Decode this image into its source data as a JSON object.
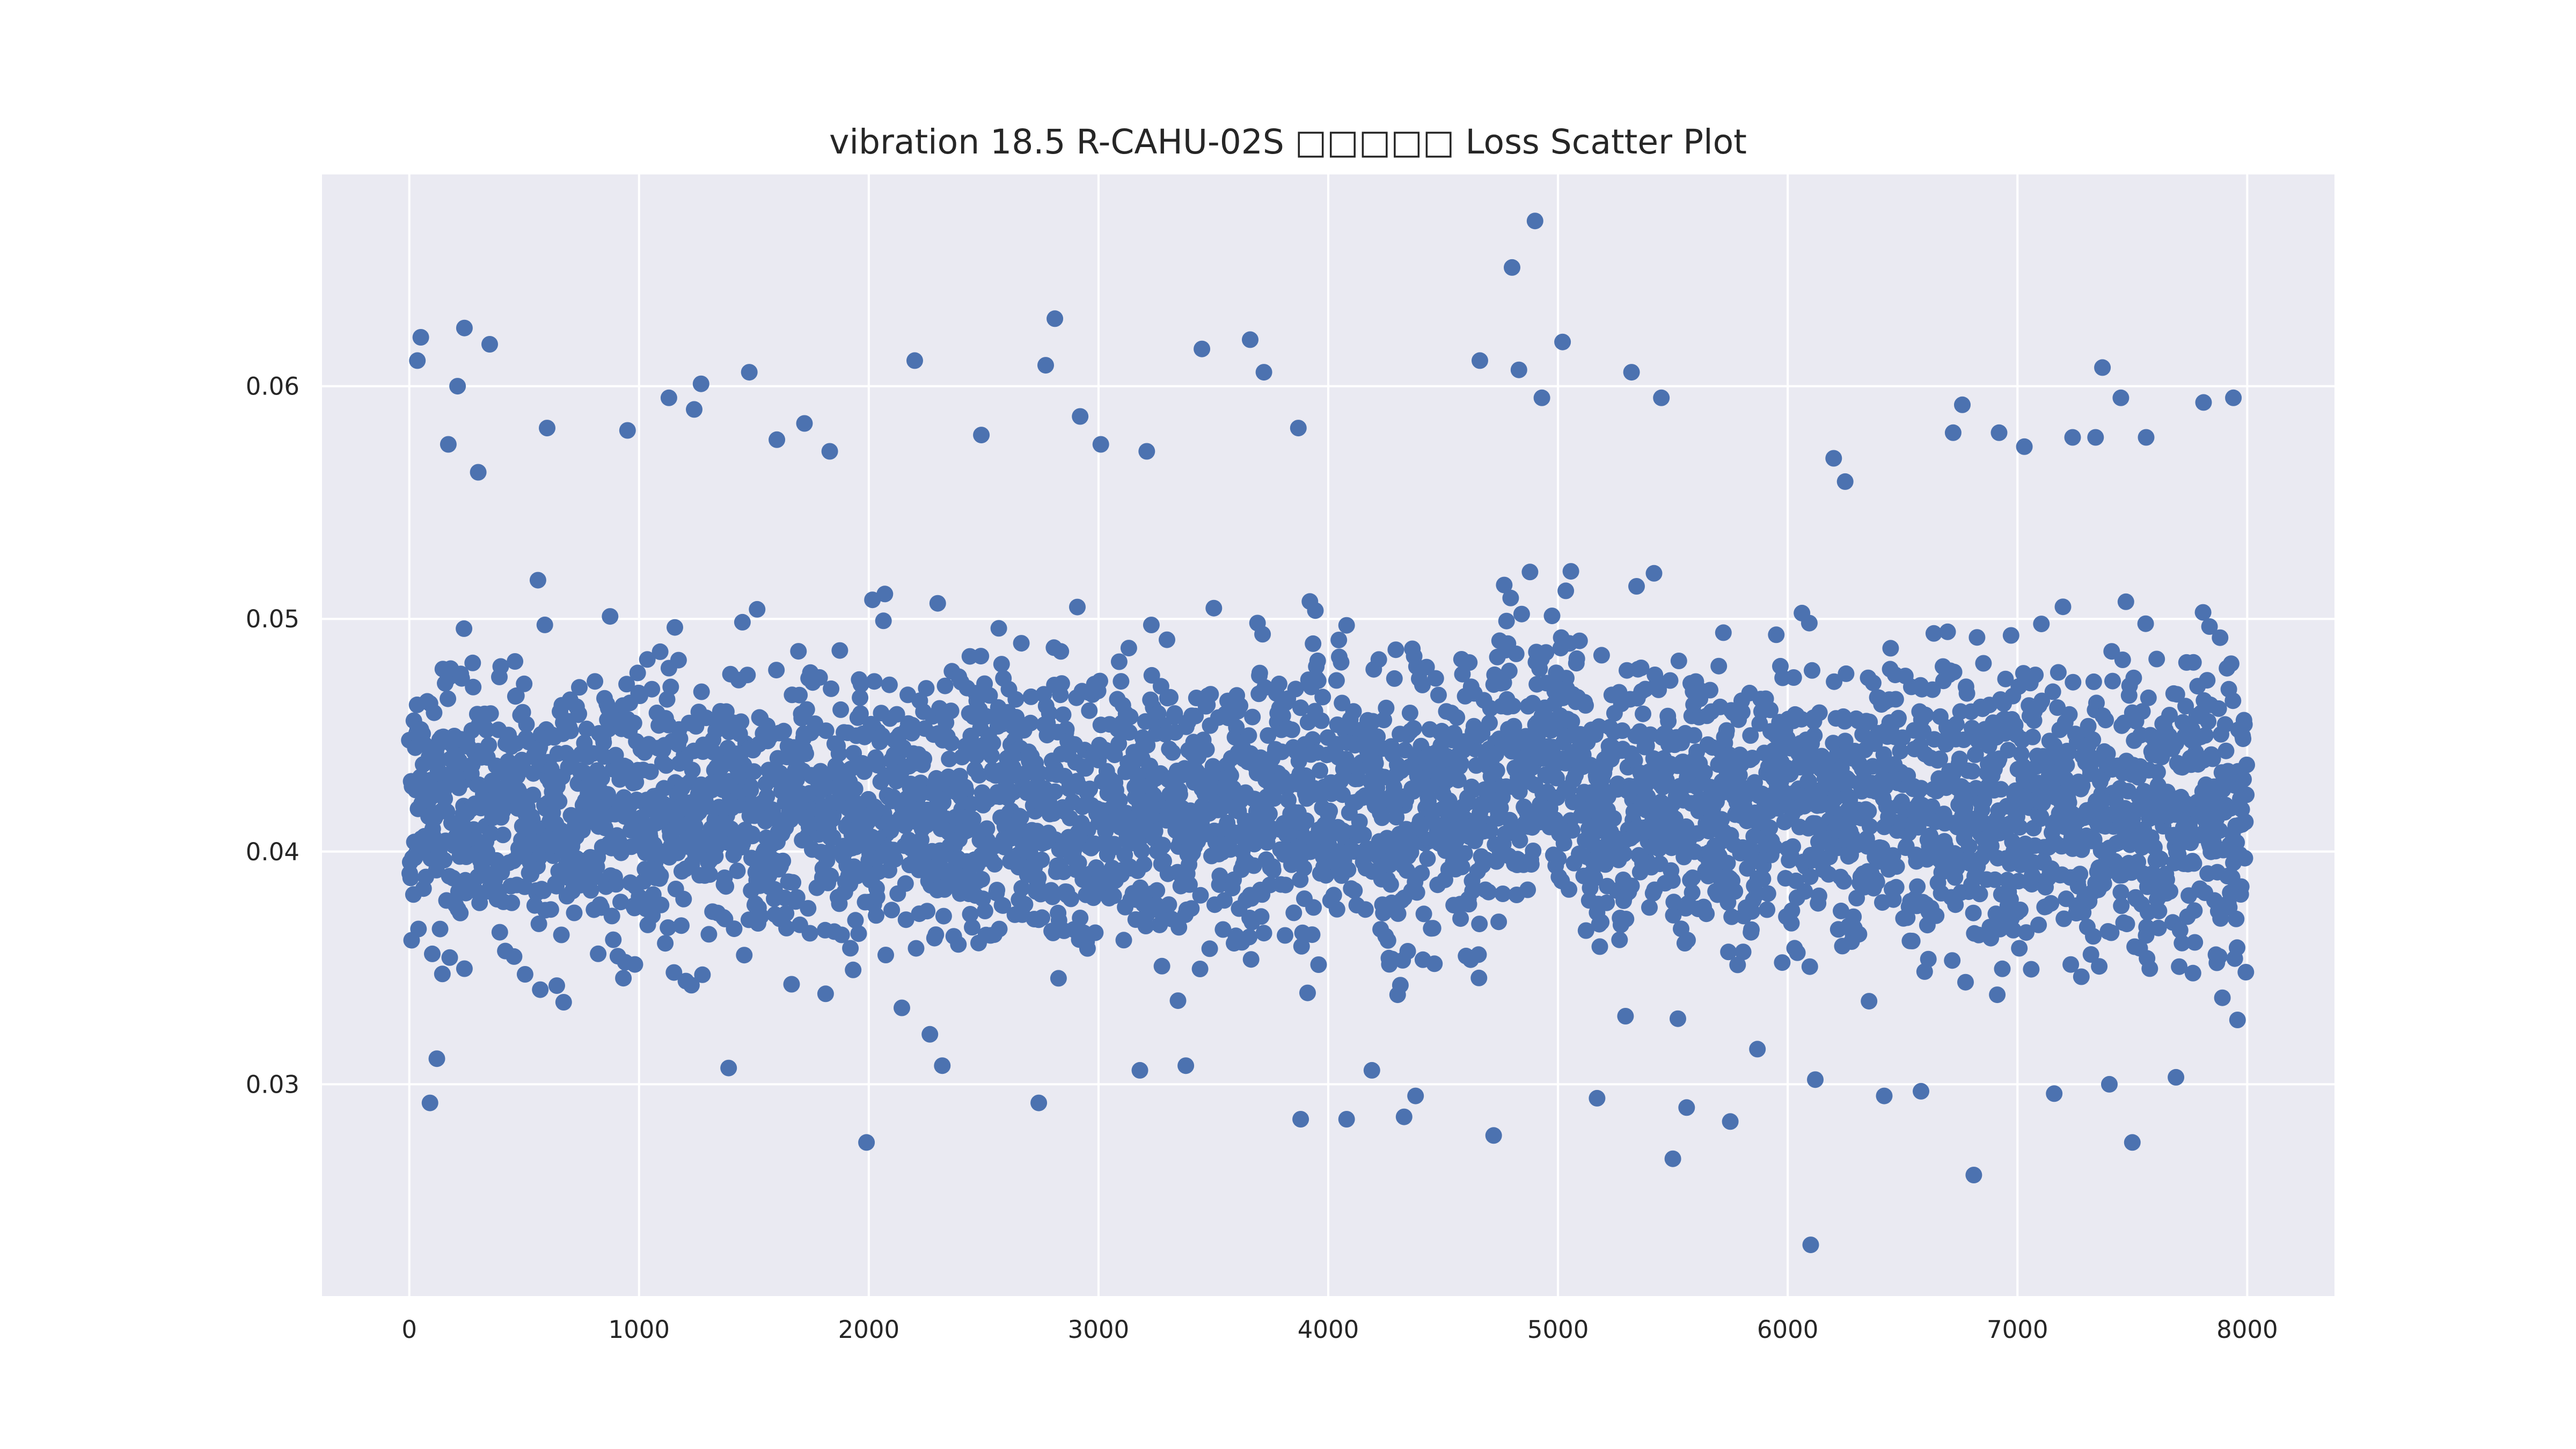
{
  "chart_data": {
    "type": "scatter",
    "title": "vibration 18.5 R-CAHU-02S □□□□□ Loss Scatter Plot",
    "xlabel": "",
    "ylabel": "",
    "xlim": [
      -380,
      8380
    ],
    "ylim": [
      0.0209,
      0.0691
    ],
    "xticks": [
      0,
      1000,
      2000,
      3000,
      4000,
      5000,
      6000,
      7000,
      8000
    ],
    "yticks": [
      0.03,
      0.04,
      0.05,
      0.06
    ],
    "xtick_labels": [
      "0",
      "1000",
      "2000",
      "3000",
      "4000",
      "5000",
      "6000",
      "7000",
      "8000"
    ],
    "ytick_labels": [
      "0.03",
      "0.04",
      "0.05",
      "0.06"
    ],
    "grid": true,
    "legend": "none",
    "colors": {
      "background": "#eaeaf2",
      "grid": "#ffffff",
      "marker": "#4c72b0"
    },
    "series": [
      {
        "n_points": 8000,
        "x_range": [
          0,
          7999
        ],
        "typical_range": [
          0.034,
          0.052
        ],
        "center": 0.042,
        "outliers": [
          [
            35,
            0.0611
          ],
          [
            50,
            0.0621
          ],
          [
            240,
            0.0625
          ],
          [
            210,
            0.06
          ],
          [
            350,
            0.0618
          ],
          [
            90,
            0.0292
          ],
          [
            120,
            0.0311
          ],
          [
            170,
            0.0575
          ],
          [
            300,
            0.0563
          ],
          [
            600,
            0.0582
          ],
          [
            950,
            0.0581
          ],
          [
            1130,
            0.0595
          ],
          [
            1270,
            0.0601
          ],
          [
            1240,
            0.059
          ],
          [
            1480,
            0.0606
          ],
          [
            1390,
            0.0307
          ],
          [
            1600,
            0.0577
          ],
          [
            1720,
            0.0584
          ],
          [
            1830,
            0.0572
          ],
          [
            1990,
            0.0275
          ],
          [
            2200,
            0.0611
          ],
          [
            2320,
            0.0308
          ],
          [
            2490,
            0.0579
          ],
          [
            2740,
            0.0292
          ],
          [
            2770,
            0.0609
          ],
          [
            2810,
            0.0629
          ],
          [
            2920,
            0.0587
          ],
          [
            3010,
            0.0575
          ],
          [
            3180,
            0.0306
          ],
          [
            3210,
            0.0572
          ],
          [
            3380,
            0.0308
          ],
          [
            3450,
            0.0616
          ],
          [
            3660,
            0.062
          ],
          [
            3720,
            0.0606
          ],
          [
            3870,
            0.0582
          ],
          [
            3880,
            0.0285
          ],
          [
            4080,
            0.0285
          ],
          [
            4190,
            0.0306
          ],
          [
            4330,
            0.0286
          ],
          [
            4380,
            0.0295
          ],
          [
            4660,
            0.0611
          ],
          [
            4720,
            0.0278
          ],
          [
            4800,
            0.0651
          ],
          [
            4830,
            0.0607
          ],
          [
            4900,
            0.0671
          ],
          [
            4930,
            0.0595
          ],
          [
            5020,
            0.0619
          ],
          [
            5170,
            0.0294
          ],
          [
            5320,
            0.0606
          ],
          [
            5450,
            0.0595
          ],
          [
            5500,
            0.0268
          ],
          [
            5560,
            0.029
          ],
          [
            5750,
            0.0284
          ],
          [
            6100,
            0.0231
          ],
          [
            6120,
            0.0302
          ],
          [
            6200,
            0.0569
          ],
          [
            6250,
            0.0559
          ],
          [
            6420,
            0.0295
          ],
          [
            6580,
            0.0297
          ],
          [
            6720,
            0.058
          ],
          [
            6760,
            0.0592
          ],
          [
            6810,
            0.0261
          ],
          [
            6920,
            0.058
          ],
          [
            7030,
            0.0574
          ],
          [
            7160,
            0.0296
          ],
          [
            7240,
            0.0578
          ],
          [
            7340,
            0.0578
          ],
          [
            7370,
            0.0608
          ],
          [
            7400,
            0.03
          ],
          [
            7450,
            0.0595
          ],
          [
            7500,
            0.0275
          ],
          [
            7560,
            0.0578
          ],
          [
            7690,
            0.0303
          ],
          [
            7810,
            0.0593
          ],
          [
            7940,
            0.0595
          ]
        ]
      }
    ]
  }
}
